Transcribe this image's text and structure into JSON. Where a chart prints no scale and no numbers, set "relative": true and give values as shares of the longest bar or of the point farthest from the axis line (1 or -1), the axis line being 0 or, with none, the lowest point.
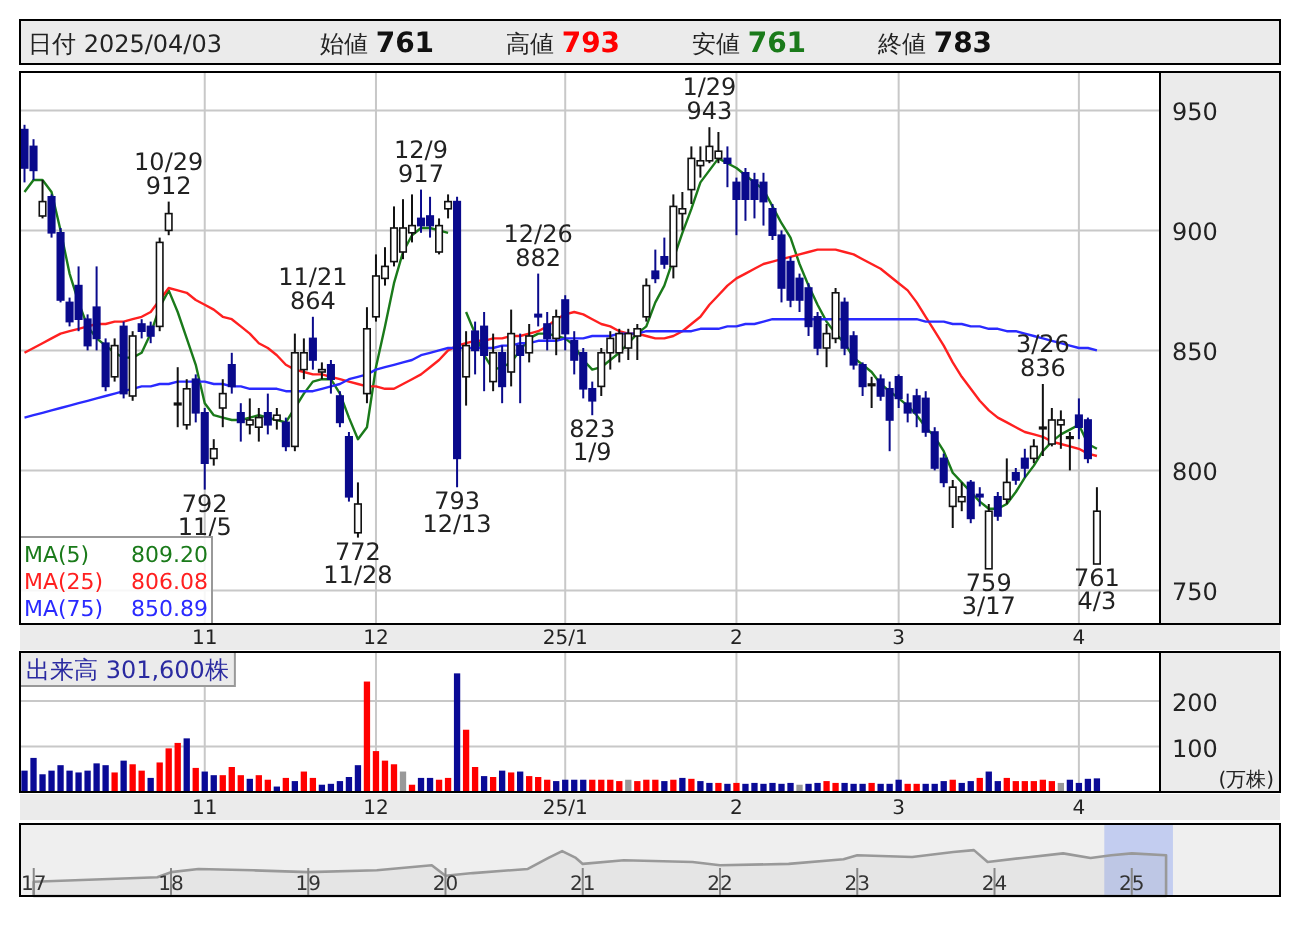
{
  "chart_data": [
    {
      "type": "candlestick",
      "categories": [
        null,
        null,
        null,
        null,
        null,
        null,
        null,
        null,
        null,
        null,
        null,
        null,
        null,
        null,
        null,
        null,
        null,
        null,
        null,
        null,
        "11",
        null,
        null,
        null,
        null,
        null,
        null,
        null,
        null,
        null,
        null,
        null,
        null,
        null,
        null,
        null,
        null,
        null,
        null,
        "12",
        null,
        null,
        null,
        null,
        null,
        null,
        null,
        null,
        null,
        null,
        null,
        null,
        null,
        null,
        null,
        null,
        null,
        null,
        null,
        null,
        "25/1",
        null,
        null,
        null,
        null,
        null,
        null,
        null,
        null,
        null,
        null,
        null,
        null,
        null,
        null,
        null,
        null,
        null,
        null,
        "2",
        null,
        null,
        null,
        null,
        null,
        null,
        null,
        null,
        null,
        null,
        null,
        null,
        null,
        null,
        null,
        null,
        null,
        "3",
        null,
        null,
        null,
        null,
        null,
        null,
        null,
        null,
        null,
        null,
        null,
        null,
        null,
        null,
        null,
        null,
        null,
        null,
        null,
        "4",
        null,
        null
      ],
      "ohlc": [
        [
          942,
          944,
          920,
          926
        ],
        [
          935,
          938,
          921,
          925
        ],
        [
          906,
          921,
          905,
          912
        ],
        [
          914,
          915,
          897,
          899
        ],
        [
          899,
          901,
          870,
          871
        ],
        [
          870,
          872,
          860,
          862
        ],
        [
          877,
          885,
          858,
          863
        ],
        [
          863,
          865,
          850,
          852
        ],
        [
          868,
          885,
          850,
          855
        ],
        [
          853,
          855,
          833,
          835
        ],
        [
          839,
          855,
          837,
          852
        ],
        [
          860,
          862,
          830,
          832
        ],
        [
          831,
          858,
          829,
          856
        ],
        [
          861,
          863,
          855,
          858
        ],
        [
          860,
          862,
          853,
          856
        ],
        [
          860,
          897,
          858,
          895
        ],
        [
          900,
          912,
          898,
          907
        ],
        [
          828,
          843,
          818,
          828
        ],
        [
          819,
          838,
          817,
          834
        ],
        [
          838,
          840,
          820,
          824
        ],
        [
          824,
          826,
          792,
          803
        ],
        [
          805,
          813,
          802,
          809
        ],
        [
          826,
          838,
          818,
          832
        ],
        [
          844,
          849,
          832,
          835
        ],
        [
          824,
          828,
          812,
          820
        ],
        [
          819,
          830,
          815,
          821
        ],
        [
          818,
          826,
          812,
          822
        ],
        [
          824,
          832,
          815,
          819
        ],
        [
          821,
          826,
          817,
          823
        ],
        [
          820,
          822,
          808,
          810
        ],
        [
          810,
          857,
          808,
          849
        ],
        [
          842,
          855,
          838,
          849
        ],
        [
          855,
          864,
          842,
          846
        ],
        [
          841,
          845,
          838,
          842
        ],
        [
          844,
          846,
          832,
          838
        ],
        [
          831,
          833,
          818,
          820
        ],
        [
          814,
          816,
          787,
          789
        ],
        [
          774,
          795,
          772,
          786
        ],
        [
          832,
          868,
          828,
          859
        ],
        [
          864,
          890,
          862,
          881
        ],
        [
          880,
          893,
          877,
          885
        ],
        [
          887,
          910,
          885,
          901
        ],
        [
          891,
          913,
          888,
          901
        ],
        [
          899,
          915,
          895,
          902
        ],
        [
          905,
          917,
          899,
          902
        ],
        [
          906,
          914,
          897,
          902
        ],
        [
          891,
          905,
          890,
          902
        ],
        [
          909,
          915,
          905,
          912
        ],
        [
          912,
          914,
          793,
          805
        ],
        [
          839,
          858,
          827,
          852
        ],
        [
          858,
          862,
          840,
          850
        ],
        [
          860,
          866,
          833,
          848
        ],
        [
          837,
          857,
          833,
          849
        ],
        [
          849,
          852,
          828,
          835
        ],
        [
          841,
          867,
          835,
          857
        ],
        [
          852,
          857,
          828,
          848
        ],
        [
          849,
          861,
          845,
          856
        ],
        [
          865,
          882,
          860,
          864
        ],
        [
          861,
          866,
          850,
          855
        ],
        [
          855,
          867,
          848,
          864
        ],
        [
          871,
          873,
          850,
          857
        ],
        [
          854,
          858,
          840,
          846
        ],
        [
          849,
          851,
          830,
          834
        ],
        [
          834,
          837,
          823,
          829
        ],
        [
          835,
          851,
          831,
          849
        ],
        [
          849,
          858,
          842,
          855
        ],
        [
          849,
          859,
          845,
          857
        ],
        [
          851,
          859,
          846,
          857
        ],
        [
          856,
          861,
          846,
          859
        ],
        [
          864,
          880,
          862,
          877
        ],
        [
          883,
          892,
          878,
          880
        ],
        [
          889,
          897,
          884,
          886
        ],
        [
          885,
          915,
          880,
          910
        ],
        [
          907,
          916,
          900,
          909
        ],
        [
          917,
          935,
          911,
          930
        ],
        [
          927,
          935,
          922,
          929
        ],
        [
          929,
          943,
          928,
          935
        ],
        [
          930,
          941,
          928,
          933
        ],
        [
          930,
          935,
          918,
          928
        ],
        [
          920,
          922,
          898,
          913
        ],
        [
          924,
          926,
          904,
          913
        ],
        [
          921,
          924,
          905,
          913
        ],
        [
          920,
          924,
          902,
          912
        ],
        [
          909,
          911,
          896,
          898
        ],
        [
          898,
          900,
          870,
          876
        ],
        [
          887,
          889,
          868,
          871
        ],
        [
          880,
          882,
          866,
          871
        ],
        [
          876,
          878,
          856,
          860
        ],
        [
          864,
          866,
          848,
          851
        ],
        [
          851,
          861,
          843,
          857
        ],
        [
          855,
          876,
          853,
          874
        ],
        [
          870,
          872,
          848,
          851
        ],
        [
          856,
          858,
          842,
          844
        ],
        [
          844,
          845,
          831,
          835
        ],
        [
          836,
          839,
          826,
          836
        ],
        [
          838,
          840,
          829,
          831
        ],
        [
          834,
          837,
          808,
          821
        ],
        [
          839,
          840,
          826,
          830
        ],
        [
          828,
          832,
          820,
          824
        ],
        [
          831,
          834,
          818,
          824
        ],
        [
          830,
          833,
          814,
          816
        ],
        [
          816,
          818,
          800,
          801
        ],
        [
          805,
          807,
          793,
          795
        ],
        [
          785,
          796,
          776,
          793
        ],
        [
          787,
          795,
          783,
          789
        ],
        [
          795,
          796,
          778,
          780
        ],
        [
          790,
          793,
          785,
          789
        ],
        [
          759,
          786,
          759,
          783
        ],
        [
          789,
          791,
          779,
          781
        ],
        [
          788,
          805,
          786,
          795
        ],
        [
          799,
          801,
          794,
          796
        ],
        [
          805,
          809,
          797,
          801
        ],
        [
          805,
          813,
          803,
          810
        ],
        [
          818,
          836,
          806,
          818
        ],
        [
          811,
          826,
          810,
          821
        ],
        [
          819,
          825,
          809,
          821
        ],
        [
          814,
          816,
          800,
          814
        ],
        [
          823,
          830,
          813,
          818
        ],
        [
          821,
          822,
          803,
          805
        ],
        [
          761,
          793,
          761,
          783
        ]
      ],
      "series": [
        {
          "name": "MA(5) 809.20",
          "type": "line",
          "color": "#1a7a1a",
          "values": [
            916,
            921,
            921,
            916,
            900,
            882,
            870,
            860,
            855,
            852,
            849,
            847,
            847,
            849,
            857,
            868,
            875,
            866,
            855,
            844,
            828,
            823,
            822,
            821,
            821,
            822,
            823,
            822,
            821,
            820,
            826,
            832,
            837,
            838,
            838,
            832,
            822,
            813,
            818,
            843,
            860,
            878,
            891,
            898,
            901,
            901,
            900,
            899,
            null,
            866,
            857,
            848,
            842,
            843,
            845,
            850,
            855,
            857,
            857,
            856,
            855,
            852,
            846,
            842,
            843,
            846,
            849,
            853,
            857,
            860,
            870,
            877,
            888,
            899,
            909,
            920,
            925,
            930,
            928,
            926,
            923,
            920,
            917,
            910,
            903,
            897,
            886,
            877,
            869,
            862,
            857,
            853,
            847,
            844,
            841,
            836,
            833,
            830,
            827,
            823,
            818,
            814,
            808,
            799,
            795,
            791,
            787,
            784,
            784,
            786,
            791,
            797,
            802,
            808,
            812,
            815,
            817,
            819,
            811,
            809
          ]
        },
        {
          "name": "MA(25) 806.08",
          "type": "line",
          "color": "#ff2020",
          "values": [
            849,
            851,
            853,
            855,
            857,
            858,
            859,
            860,
            861,
            861,
            862,
            862,
            863,
            864,
            866,
            871,
            876,
            875,
            874,
            871,
            869,
            867,
            864,
            863,
            860,
            857,
            853,
            851,
            848,
            844,
            842,
            841,
            840,
            840,
            839,
            838,
            837,
            836,
            835,
            835,
            834,
            834,
            836,
            838,
            840,
            843,
            846,
            850,
            852,
            853,
            854,
            854,
            855,
            855,
            856,
            856,
            857,
            858,
            860,
            863,
            865,
            866,
            865,
            863,
            861,
            860,
            858,
            857,
            857,
            856,
            855,
            855,
            856,
            858,
            861,
            864,
            869,
            873,
            877,
            880,
            882,
            884,
            886,
            887,
            888,
            889,
            890,
            891,
            892,
            892,
            892,
            891,
            890,
            888,
            886,
            884,
            881,
            878,
            875,
            870,
            864,
            858,
            852,
            845,
            839,
            834,
            829,
            825,
            822,
            820,
            818,
            816,
            815,
            814,
            812,
            811,
            810,
            809,
            807,
            806
          ]
        },
        {
          "name": "MA(75) 850.89",
          "type": "line",
          "color": "#2a2aff",
          "values": [
            822,
            823,
            824,
            825,
            826,
            827,
            828,
            829,
            830,
            831,
            832,
            833,
            834,
            835,
            835,
            836,
            836,
            837,
            837,
            837,
            837,
            836,
            836,
            835,
            835,
            834,
            834,
            834,
            834,
            833,
            833,
            833,
            833,
            834,
            835,
            836,
            838,
            839,
            840,
            842,
            843,
            844,
            845,
            846,
            848,
            849,
            850,
            851,
            851,
            851,
            851,
            851,
            851,
            852,
            852,
            853,
            853,
            854,
            854,
            854,
            855,
            855,
            855,
            856,
            856,
            856,
            857,
            857,
            857,
            858,
            858,
            858,
            858,
            858,
            858,
            859,
            859,
            859,
            860,
            860,
            861,
            861,
            862,
            863,
            863,
            863,
            863,
            863,
            863,
            863,
            863,
            863,
            863,
            863,
            863,
            863,
            863,
            863,
            863,
            863,
            862,
            862,
            862,
            861,
            861,
            860,
            860,
            859,
            859,
            858,
            858,
            857,
            856,
            855,
            854,
            853,
            852,
            851,
            851,
            850
          ]
        }
      ],
      "ylim": [
        736,
        966
      ],
      "yticks": [
        750,
        800,
        850,
        900,
        950
      ],
      "grid": true,
      "annotations": [
        "日付 2025/04/03",
        "始値 761",
        "高値 793",
        "安値 761",
        "終値 783",
        {
          "text": "10/29\n912",
          "y": 912
        },
        {
          "text": "792\n11/5",
          "y": 792
        },
        {
          "text": "11/21\n864",
          "y": 864
        },
        {
          "text": "772\n11/28",
          "y": 772
        },
        {
          "text": "12/9\n917",
          "y": 917
        },
        {
          "text": "793\n12/13",
          "y": 793
        },
        {
          "text": "12/26\n882",
          "y": 882
        },
        {
          "text": "823\n1/9",
          "y": 823
        },
        {
          "text": "1/29\n943",
          "y": 943
        },
        {
          "text": "759\n3/17",
          "y": 759
        },
        {
          "text": "3/26\n836",
          "y": 836
        },
        {
          "text": "761\n4/3",
          "y": 761
        }
      ]
    },
    {
      "type": "bar",
      "title": "出来高 301,600株",
      "ylabel": "(万株)",
      "categories": [
        null,
        null,
        null,
        null,
        null,
        null,
        null,
        null,
        null,
        null,
        null,
        null,
        null,
        null,
        null,
        null,
        null,
        null,
        null,
        null,
        "11",
        null,
        null,
        null,
        null,
        null,
        null,
        null,
        null,
        null,
        null,
        null,
        null,
        null,
        null,
        null,
        null,
        null,
        null,
        "12",
        null,
        null,
        null,
        null,
        null,
        null,
        null,
        null,
        null,
        null,
        null,
        null,
        null,
        null,
        null,
        null,
        null,
        null,
        null,
        null,
        "25/1",
        null,
        null,
        null,
        null,
        null,
        null,
        null,
        null,
        null,
        null,
        null,
        null,
        null,
        null,
        null,
        null,
        null,
        null,
        "2",
        null,
        null,
        null,
        null,
        null,
        null,
        null,
        null,
        null,
        null,
        null,
        null,
        null,
        null,
        null,
        null,
        null,
        "3",
        null,
        null,
        null,
        null,
        null,
        null,
        null,
        null,
        null,
        null,
        null,
        null,
        null,
        null,
        null,
        null,
        null,
        null,
        null,
        "4",
        null,
        null
      ],
      "values": [
        47,
        75,
        39,
        47,
        59,
        47,
        43,
        47,
        63,
        59,
        43,
        69,
        61,
        47,
        31,
        65,
        96,
        108,
        118,
        53,
        45,
        37,
        37,
        55,
        37,
        29,
        37,
        27,
        12,
        31,
        24,
        45,
        31,
        16,
        18,
        24,
        33,
        59,
        243,
        90,
        69,
        61,
        45,
        16,
        31,
        31,
        27,
        31,
        261,
        137,
        55,
        35,
        33,
        47,
        43,
        45,
        35,
        33,
        27,
        24,
        27,
        27,
        27,
        27,
        27,
        27,
        24,
        27,
        24,
        27,
        27,
        24,
        27,
        31,
        29,
        24,
        20,
        20,
        18,
        20,
        18,
        20,
        18,
        20,
        18,
        20,
        16,
        18,
        20,
        24,
        20,
        20,
        18,
        18,
        20,
        18,
        18,
        27,
        18,
        18,
        18,
        18,
        24,
        27,
        20,
        24,
        31,
        45,
        24,
        31,
        24,
        24,
        24,
        27,
        24,
        20,
        27,
        20,
        29,
        30
      ],
      "colors": [
        "#0a0a96",
        "#0a0a96",
        "#0a0a96",
        "#0a0a96",
        "#0a0a96",
        "#0a0a96",
        "#0a0a96",
        "#0a0a96",
        "#0a0a96",
        "#0a0a96",
        "#ff0000",
        "#0a0a96",
        "#ff0000",
        "#ff0000",
        "#0a0a96",
        "#ff0000",
        "#ff0000",
        "#ff0000",
        "#0a0a96",
        "#ff0000",
        "#0a0a96",
        "#0a0a96",
        "#ff0000",
        "#ff0000",
        "#ff0000",
        "#0a0a96",
        "#ff0000",
        "#ff0000",
        "#0a0a96",
        "#ff0000",
        "#0a0a96",
        "#ff0000",
        "#ff0000",
        "#0a0a96",
        "#0a0a96",
        "#0a0a96",
        "#0a0a96",
        "#0a0a96",
        "#ff0000",
        "#ff0000",
        "#ff0000",
        "#ff0000",
        "#999999",
        "#ff0000",
        "#0a0a96",
        "#0a0a96",
        "#ff0000",
        "#ff0000",
        "#0a0a96",
        "#ff0000",
        "#ff0000",
        "#0a0a96",
        "#ff0000",
        "#0a0a96",
        "#ff0000",
        "#0a0a96",
        "#ff0000",
        "#ff0000",
        "#ff0000",
        "#0a0a96",
        "#0a0a96",
        "#0a0a96",
        "#0a0a96",
        "#ff0000",
        "#ff0000",
        "#ff0000",
        "#ff0000",
        "#999999",
        "#ff0000",
        "#ff0000",
        "#ff0000",
        "#0a0a96",
        "#ff0000",
        "#0a0a96",
        "#ff0000",
        "#0a0a96",
        "#0a0a96",
        "#ff0000",
        "#0a0a96",
        "#ff0000",
        "#0a0a96",
        "#0a0a96",
        "#0a0a96",
        "#0a0a96",
        "#0a0a96",
        "#0a0a96",
        "#999999",
        "#0a0a96",
        "#0a0a96",
        "#ff0000",
        "#ff0000",
        "#0a0a96",
        "#0a0a96",
        "#0a0a96",
        "#ff0000",
        "#0a0a96",
        "#0a0a96",
        "#0a0a96",
        "#ff0000",
        "#ff0000",
        "#0a0a96",
        "#0a0a96",
        "#0a0a96",
        "#ff0000",
        "#0a0a96",
        "#0a0a96",
        "#ff0000",
        "#0a0a96",
        "#0a0a96",
        "#ff0000",
        "#ff0000",
        "#ff0000",
        "#ff0000",
        "#ff0000",
        "#ff0000",
        "#999999",
        "#0a0a96",
        "#0a0a96",
        "#0a0a96",
        "#0a0a96"
      ],
      "ylim": [
        0,
        308
      ],
      "yticks": [
        100,
        200
      ],
      "grid": true
    },
    {
      "type": "area",
      "relative": true,
      "color": "#999999",
      "x": [
        2017.0,
        2017.9,
        2018.0,
        2018.2,
        2018.6,
        2019.0,
        2019.5,
        2019.9,
        2020.0,
        2020.2,
        2020.6,
        2020.75,
        2020.85,
        2020.95,
        2021.0,
        2021.3,
        2021.8,
        2022.0,
        2022.5,
        2022.9,
        2023.0,
        2023.4,
        2023.7,
        2023.85,
        2023.95,
        2024.2,
        2024.5,
        2024.7,
        2024.85,
        2025.0,
        2025.25
      ],
      "values": [
        0.31,
        0.41,
        0.52,
        0.59,
        0.56,
        0.52,
        0.56,
        0.67,
        0.44,
        0.5,
        0.59,
        0.83,
        0.98,
        0.83,
        0.7,
        0.78,
        0.74,
        0.67,
        0.7,
        0.8,
        0.89,
        0.85,
        0.96,
        1,
        0.74,
        0.83,
        0.93,
        0.83,
        0.89,
        0.93,
        0.89
      ],
      "xlim": [
        2016.9,
        2026.08
      ],
      "xticks": [
        {
          "value": 2017,
          "label": "17"
        },
        {
          "value": 2018,
          "label": "18"
        },
        {
          "value": 2019,
          "label": "19"
        },
        {
          "value": 2020,
          "label": "20"
        },
        {
          "value": 2021,
          "label": "21"
        },
        {
          "value": 2022,
          "label": "22"
        },
        {
          "value": 2023,
          "label": "23"
        },
        {
          "value": 2024,
          "label": "24"
        },
        {
          "value": 2025,
          "label": "25"
        }
      ],
      "bands": [
        {
          "axis": "x",
          "from": 2024.8,
          "to": 2025.3,
          "color": "#b8c4f0"
        }
      ]
    }
  ]
}
